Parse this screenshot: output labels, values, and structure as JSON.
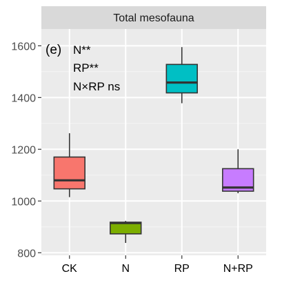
{
  "chart_data": {
    "type": "boxplot",
    "title": "",
    "facet_label": "Total mesofauna",
    "panel_tag": "(e)",
    "annotations": [
      "N**",
      "RP**",
      "N×RP ns"
    ],
    "xlabel": "",
    "ylabel": "",
    "categories": [
      "CK",
      "N",
      "RP",
      "N+RP"
    ],
    "ylim": [
      790,
      1665
    ],
    "yticks": [
      800,
      1000,
      1200,
      1400,
      1600
    ],
    "grid": true,
    "legend": "none",
    "boxes": [
      {
        "category": "CK",
        "whisker_low": 1015,
        "q1": 1047,
        "median": 1080,
        "q3": 1170,
        "whisker_high": 1262,
        "color": "#F8766D"
      },
      {
        "category": "N",
        "whisker_low": 838,
        "q1": 873,
        "median": 915,
        "q3": 918,
        "whisker_high": 923,
        "color": "#7CAE00"
      },
      {
        "category": "RP",
        "whisker_low": 1378,
        "q1": 1418,
        "median": 1458,
        "q3": 1528,
        "whisker_high": 1595,
        "color": "#00BFC4"
      },
      {
        "category": "N+RP",
        "whisker_low": 1030,
        "q1": 1038,
        "median": 1052,
        "q3": 1125,
        "whisker_high": 1200,
        "color": "#C77CFF"
      }
    ],
    "colors": {
      "panel_background": "#ebebeb",
      "strip_background": "#d9d9d9",
      "grid_major": "#ffffff",
      "text": "#000000",
      "axis_text": "#4d4d4d"
    }
  }
}
